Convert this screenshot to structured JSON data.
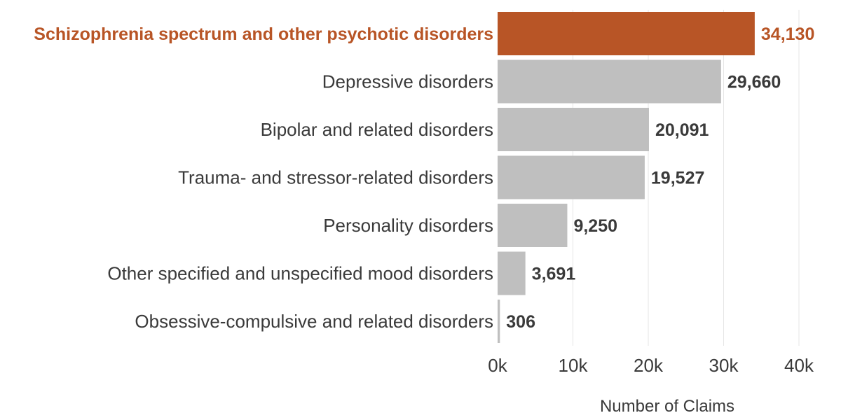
{
  "chart_data": {
    "type": "bar",
    "orientation": "horizontal",
    "categories": [
      "Schizophrenia spectrum and other psychotic disorders",
      "Depressive disorders",
      "Bipolar and related disorders",
      "Trauma- and stressor-related disorders",
      "Personality disorders",
      "Other specified and unspecified mood disorders",
      "Obsessive-compulsive and related disorders"
    ],
    "values": [
      34130,
      29660,
      20091,
      19527,
      9250,
      3691,
      306
    ],
    "value_labels": [
      "34,130",
      "29,660",
      "20,091",
      "19,527",
      "9,250",
      "3,691",
      "306"
    ],
    "highlight_index": 0,
    "xlabel": "Number of Claims",
    "ylabel": "",
    "xlim": [
      0,
      40000
    ],
    "x_ticks": [
      0,
      10000,
      20000,
      30000,
      40000
    ],
    "x_tick_labels": [
      "0k",
      "10k",
      "20k",
      "30k",
      "40k"
    ],
    "grid": "vertical",
    "legend": "none",
    "colors": {
      "highlight": "#b85526",
      "bar": "#bfbfbf",
      "text": "#3a3a3a",
      "grid": "#e6e6e6"
    }
  }
}
